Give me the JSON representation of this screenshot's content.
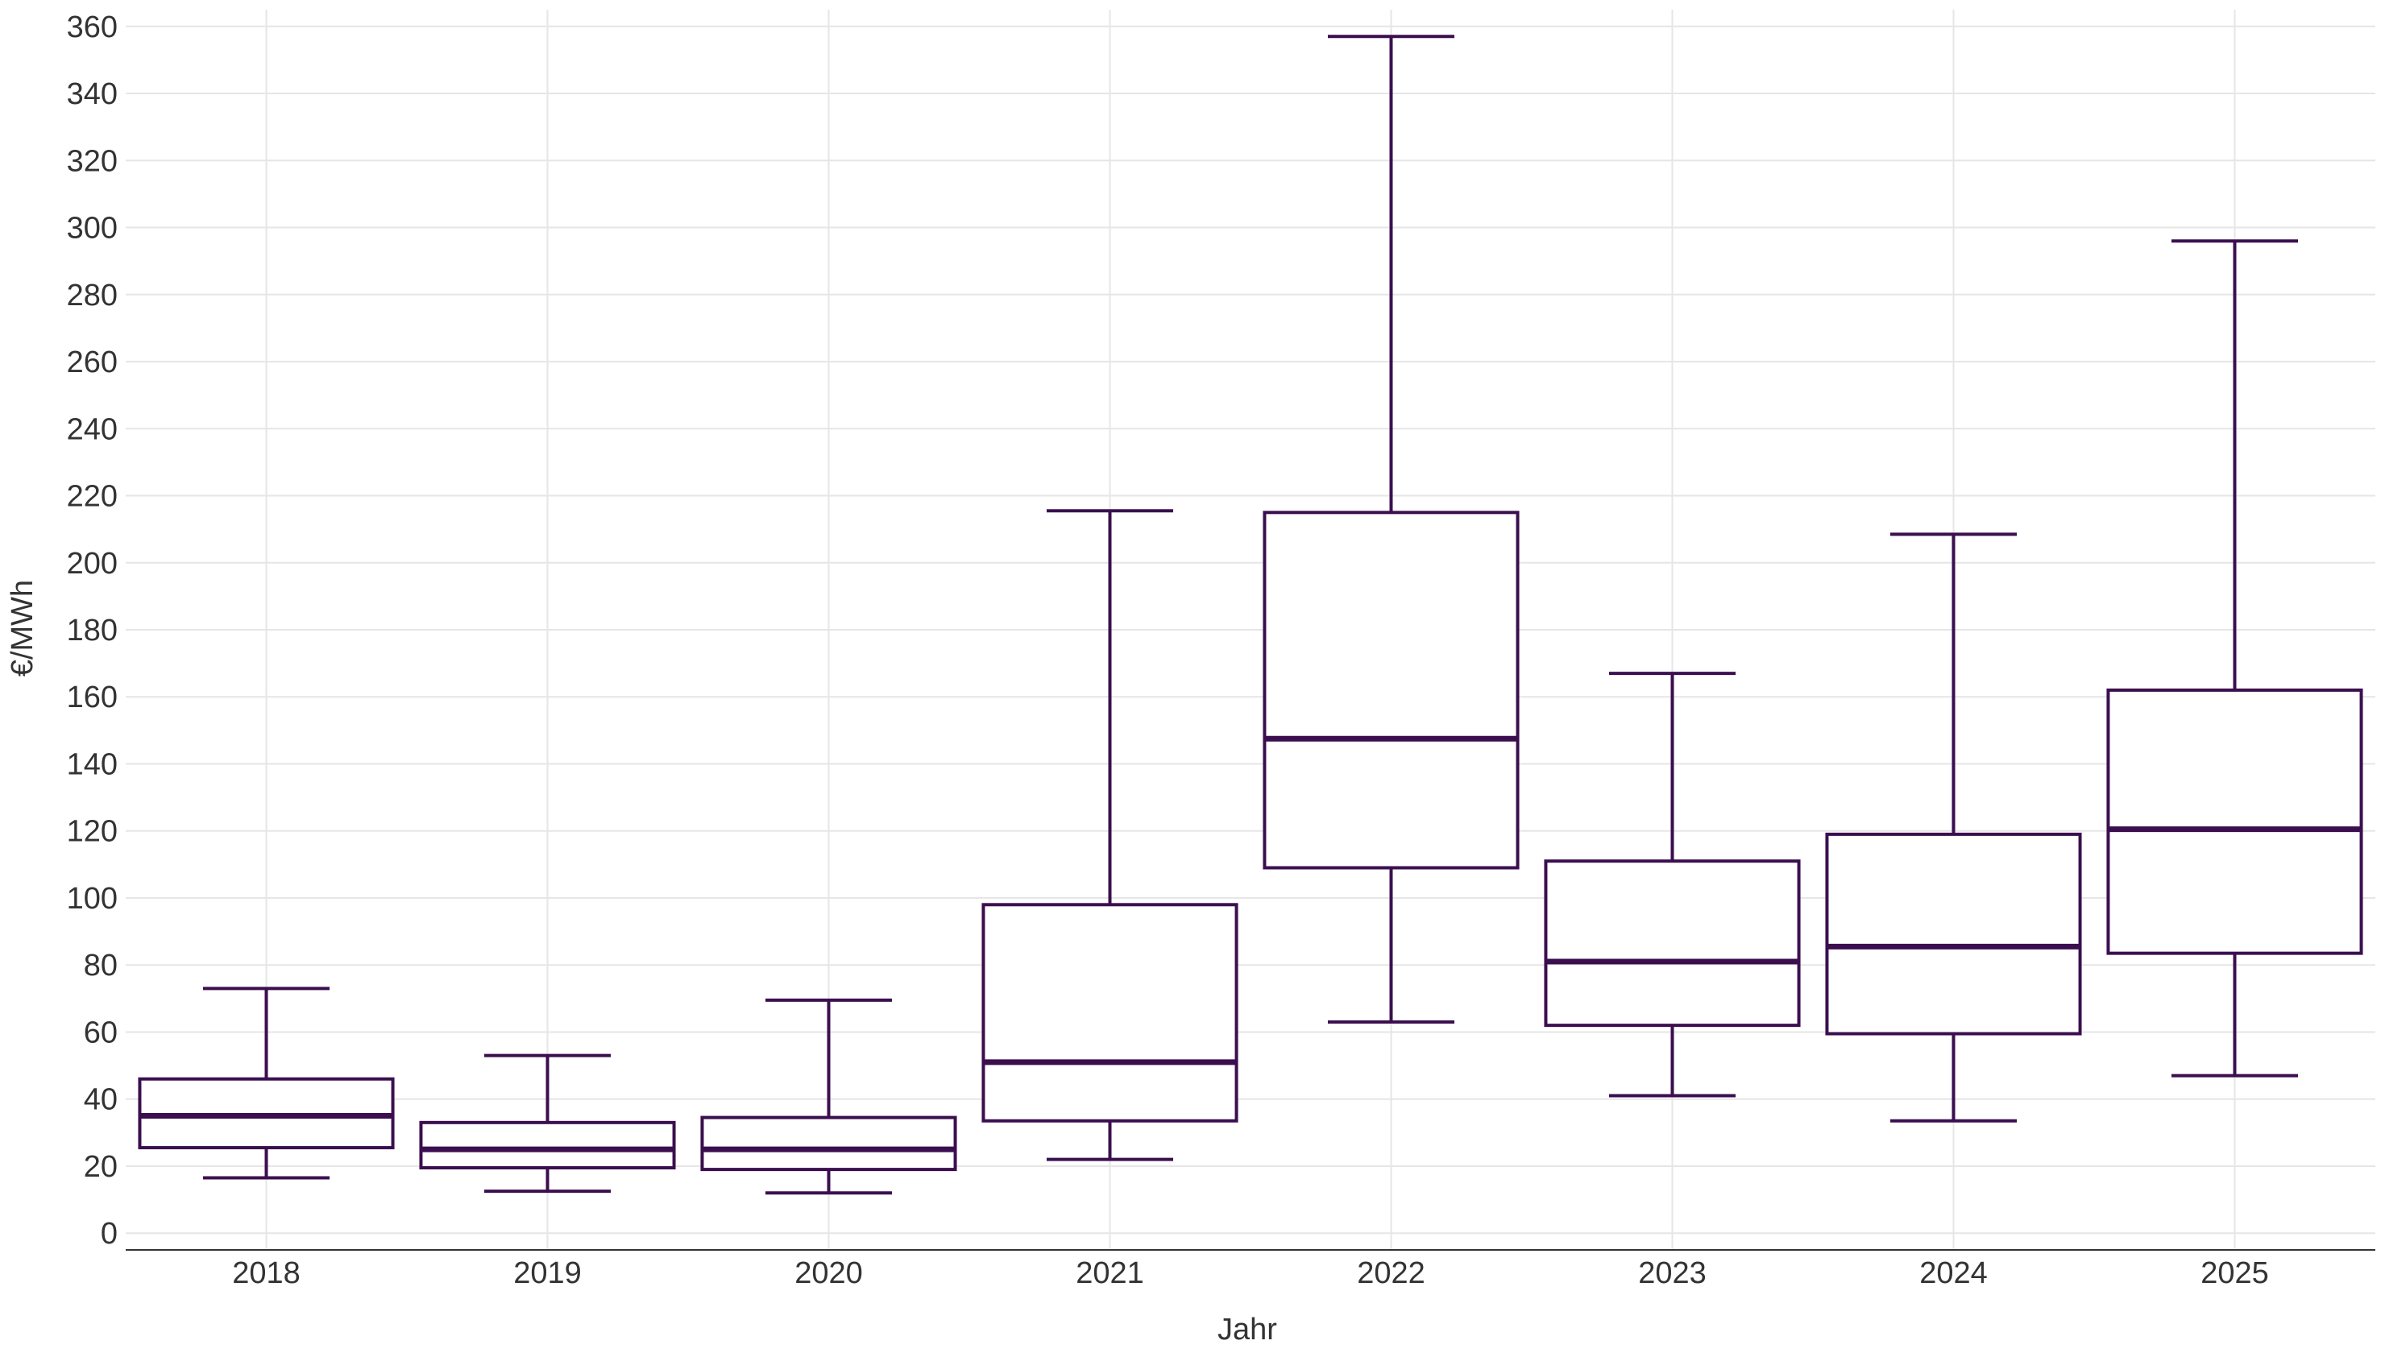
{
  "chart_data": {
    "type": "boxplot",
    "title": "",
    "xlabel": "Jahr",
    "ylabel": "€/MWh",
    "ylim": [
      -5,
      365
    ],
    "yticks": [
      0,
      20,
      40,
      60,
      80,
      100,
      120,
      140,
      160,
      180,
      200,
      220,
      240,
      260,
      280,
      300,
      320,
      340,
      360
    ],
    "grid": true,
    "color": "#3b0f4f",
    "categories": [
      "2018",
      "2019",
      "2020",
      "2021",
      "2022",
      "2023",
      "2024",
      "2025"
    ],
    "boxes": [
      {
        "category": "2018",
        "min": 16.5,
        "q1": 25.5,
        "median": 35,
        "q3": 46,
        "max": 73
      },
      {
        "category": "2019",
        "min": 12.5,
        "q1": 19.5,
        "median": 25,
        "q3": 33,
        "max": 53
      },
      {
        "category": "2020",
        "min": 12,
        "q1": 19,
        "median": 25,
        "q3": 34.5,
        "max": 69.5
      },
      {
        "category": "2021",
        "min": 22,
        "q1": 33.5,
        "median": 51,
        "q3": 98,
        "max": 215.5
      },
      {
        "category": "2022",
        "min": 63,
        "q1": 109,
        "median": 147.5,
        "q3": 215,
        "max": 357
      },
      {
        "category": "2023",
        "min": 41,
        "q1": 62,
        "median": 81,
        "q3": 111,
        "max": 167
      },
      {
        "category": "2024",
        "min": 33.5,
        "q1": 59.5,
        "median": 85.5,
        "q3": 119,
        "max": 208.5
      },
      {
        "category": "2025",
        "min": 47,
        "q1": 83.5,
        "median": 120.5,
        "q3": 162,
        "max": 296
      }
    ]
  }
}
